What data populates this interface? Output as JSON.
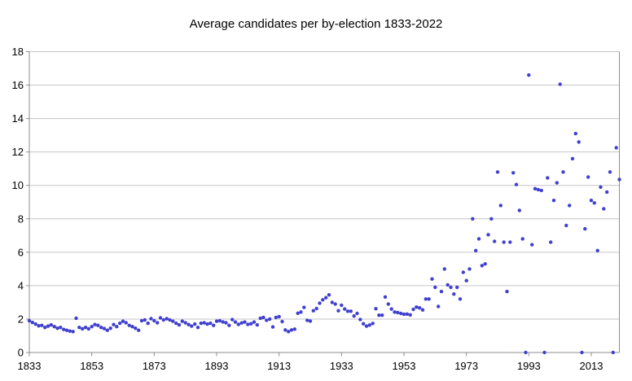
{
  "chart_data": {
    "type": "scatter",
    "title": "Average candidates per by-election 1833-2022",
    "xlabel": "",
    "ylabel": "",
    "start_year": 1833,
    "end_year": 2022,
    "x_tick_years": [
      1833,
      1853,
      1873,
      1893,
      1913,
      1933,
      1953,
      1973,
      1993,
      2013
    ],
    "y_ticks": [
      0,
      2,
      4,
      6,
      8,
      10,
      12,
      14,
      16,
      18
    ],
    "ylim": [
      0,
      18
    ],
    "grid": true,
    "legend_position": "none",
    "colors": {
      "point": "#4040cf",
      "grid": "#c6c6c6",
      "axis": "#8e8e8e",
      "text": "#000000",
      "background": "#ffffff"
    },
    "values": [
      1.9,
      1.8,
      1.7,
      1.6,
      1.62,
      1.5,
      1.58,
      1.65,
      1.55,
      1.45,
      1.5,
      1.38,
      1.33,
      1.28,
      1.25,
      2.05,
      1.5,
      1.42,
      1.5,
      1.42,
      1.55,
      1.67,
      1.62,
      1.5,
      1.43,
      1.33,
      1.45,
      1.67,
      1.55,
      1.75,
      1.87,
      1.78,
      1.62,
      1.55,
      1.45,
      1.33,
      1.9,
      1.95,
      1.75,
      2.02,
      1.9,
      1.78,
      2.07,
      1.95,
      2.02,
      1.95,
      1.87,
      1.75,
      1.65,
      1.87,
      1.78,
      1.67,
      1.58,
      1.7,
      1.5,
      1.75,
      1.78,
      1.7,
      1.75,
      1.62,
      1.87,
      1.9,
      1.83,
      1.78,
      1.62,
      1.97,
      1.82,
      1.68,
      1.77,
      1.82,
      1.68,
      1.72,
      1.82,
      1.65,
      2.05,
      2.1,
      1.93,
      2.0,
      1.53,
      2.1,
      2.15,
      1.85,
      1.35,
      1.25,
      1.35,
      1.4,
      2.35,
      2.42,
      2.7,
      1.93,
      1.88,
      2.5,
      2.63,
      2.95,
      3.15,
      3.28,
      3.45,
      3.0,
      2.9,
      2.5,
      2.83,
      2.6,
      2.47,
      2.47,
      2.18,
      2.34,
      1.98,
      1.72,
      1.58,
      1.64,
      1.74,
      2.62,
      2.23,
      2.23,
      3.32,
      2.9,
      2.6,
      2.42,
      2.39,
      2.34,
      2.29,
      2.3,
      2.25,
      2.58,
      2.72,
      2.67,
      2.55,
      3.2,
      3.2,
      4.4,
      3.9,
      2.75,
      3.65,
      5.0,
      4.05,
      3.9,
      3.5,
      3.9,
      3.2,
      4.8,
      4.3,
      5.0,
      8.0,
      6.1,
      6.8,
      5.2,
      5.3,
      7.05,
      8.0,
      6.65,
      10.8,
      8.8,
      6.6,
      3.65,
      6.6,
      10.75,
      10.05,
      8.5,
      6.8,
      0,
      16.6,
      6.45,
      9.8,
      9.75,
      9.7,
      0,
      10.45,
      6.6,
      9.1,
      10.15,
      16.05,
      10.8,
      7.6,
      8.8,
      11.6,
      13.1,
      12.6,
      0,
      7.4,
      10.5,
      9.1,
      8.95,
      6.1,
      9.9,
      8.6,
      9.6,
      10.8,
      0,
      12.25,
      10.35
    ]
  }
}
